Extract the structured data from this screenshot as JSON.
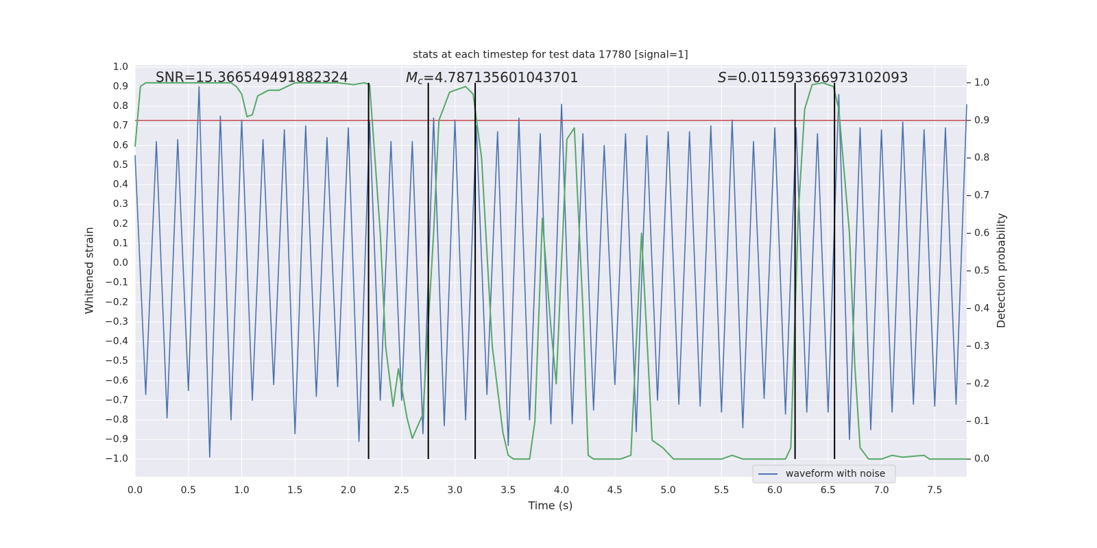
{
  "chart_data": {
    "type": "line",
    "title": "stats at each timestep for test data 17780 [signal=1]",
    "xlabel": "Time (s)",
    "ylabel": "Whitened strain",
    "y2label": "Detection probability",
    "annotations": [
      {
        "text": "SNR=15.366549491882324"
      },
      {
        "symbol": "M",
        "subscript": "c",
        "text": "=4.787135601043701"
      },
      {
        "symbol": "S",
        "text": "=0.011593366973102093"
      }
    ],
    "xlim": [
      0,
      7.8
    ],
    "ylim": [
      -1.09,
      1.01
    ],
    "y2lim": [
      -0.047,
      1.047
    ],
    "xticks": [
      {
        "value": 0,
        "label": "0.0"
      },
      {
        "value": 0.5,
        "label": "0.5"
      },
      {
        "value": 1,
        "label": "1.0"
      },
      {
        "value": 1.5,
        "label": "1.5"
      },
      {
        "value": 2,
        "label": "2.0"
      },
      {
        "value": 2.5,
        "label": "2.5"
      },
      {
        "value": 3,
        "label": "3.0"
      },
      {
        "value": 3.5,
        "label": "3.5"
      },
      {
        "value": 4,
        "label": "4.0"
      },
      {
        "value": 4.5,
        "label": "4.5"
      },
      {
        "value": 5,
        "label": "5.0"
      },
      {
        "value": 5.5,
        "label": "5.5"
      },
      {
        "value": 6,
        "label": "6.0"
      },
      {
        "value": 6.5,
        "label": "6.5"
      },
      {
        "value": 7,
        "label": "7.0"
      },
      {
        "value": 7.5,
        "label": "7.5"
      }
    ],
    "yticks": [
      {
        "value": 1,
        "label": "1.0"
      },
      {
        "value": 0.9,
        "label": "0.9"
      },
      {
        "value": 0.8,
        "label": "0.8"
      },
      {
        "value": 0.7,
        "label": "0.7"
      },
      {
        "value": 0.6,
        "label": "0.6"
      },
      {
        "value": 0.5,
        "label": "0.5"
      },
      {
        "value": 0.4,
        "label": "0.4"
      },
      {
        "value": 0.3,
        "label": "0.3"
      },
      {
        "value": 0.2,
        "label": "0.2"
      },
      {
        "value": 0.1,
        "label": "0.1"
      },
      {
        "value": 0,
        "label": "0.0"
      },
      {
        "value": -0.1,
        "label": "−0.1"
      },
      {
        "value": -0.2,
        "label": "−0.2"
      },
      {
        "value": -0.3,
        "label": "−0.3"
      },
      {
        "value": -0.4,
        "label": "−0.4"
      },
      {
        "value": -0.5,
        "label": "−0.5"
      },
      {
        "value": -0.6,
        "label": "−0.6"
      },
      {
        "value": -0.7,
        "label": "−0.7"
      },
      {
        "value": -0.8,
        "label": "−0.8"
      },
      {
        "value": -0.9,
        "label": "−0.9"
      },
      {
        "value": -1,
        "label": "−1.0"
      }
    ],
    "y2ticks": [
      {
        "value": 0,
        "label": "0.0"
      },
      {
        "value": 0.1,
        "label": "0.1"
      },
      {
        "value": 0.2,
        "label": "0.2"
      },
      {
        "value": 0.3,
        "label": "0.3"
      },
      {
        "value": 0.4,
        "label": "0.4"
      },
      {
        "value": 0.5,
        "label": "0.5"
      },
      {
        "value": 0.6,
        "label": "0.6"
      },
      {
        "value": 0.7,
        "label": "0.7"
      },
      {
        "value": 0.8,
        "label": "0.8"
      },
      {
        "value": 0.9,
        "label": "0.9"
      },
      {
        "value": 1,
        "label": "1.0"
      }
    ],
    "grid": true,
    "legend": "lower right",
    "series": [
      {
        "name": "waveform with noise",
        "color": "#4c72b0",
        "axis": "y",
        "x": [
          0,
          0.1,
          0.2,
          0.3,
          0.4,
          0.5,
          0.6,
          0.7,
          0.8,
          0.9,
          1,
          1.1,
          1.2,
          1.3,
          1.4,
          1.5,
          1.6,
          1.7,
          1.8,
          1.9,
          2,
          2.1,
          2.2,
          2.3,
          2.4,
          2.5,
          2.6,
          2.7,
          2.8,
          2.9,
          3,
          3.1,
          3.2,
          3.3,
          3.4,
          3.5,
          3.6,
          3.7,
          3.8,
          3.9,
          4,
          4.1,
          4.2,
          4.3,
          4.4,
          4.5,
          4.6,
          4.7,
          4.8,
          4.9,
          5,
          5.1,
          5.2,
          5.3,
          5.4,
          5.5,
          5.6,
          5.7,
          5.8,
          5.9,
          6,
          6.1,
          6.2,
          6.3,
          6.4,
          6.5,
          6.6,
          6.7,
          6.8,
          6.9,
          7,
          7.1,
          7.2,
          7.3,
          7.4,
          7.5,
          7.6,
          7.7,
          7.8
        ],
        "values": [
          0.55,
          -0.67,
          0.62,
          -0.79,
          0.63,
          -0.65,
          0.9,
          -0.99,
          0.75,
          -0.8,
          0.73,
          -0.7,
          0.63,
          -0.62,
          0.68,
          -0.87,
          0.7,
          -0.68,
          0.64,
          -0.63,
          0.69,
          -0.91,
          0.72,
          -0.7,
          0.62,
          -0.7,
          0.62,
          -0.87,
          0.74,
          -0.83,
          0.73,
          -0.8,
          0.7,
          -0.67,
          0.67,
          -0.93,
          0.74,
          -0.8,
          0.66,
          -0.82,
          0.81,
          -0.82,
          0.66,
          -0.75,
          0.6,
          -0.62,
          0.66,
          -0.86,
          0.65,
          -0.7,
          0.67,
          -0.72,
          0.67,
          -0.73,
          0.7,
          -0.76,
          0.73,
          -0.84,
          0.62,
          -0.69,
          0.69,
          -0.77,
          0.69,
          -0.76,
          0.66,
          -0.76,
          0.86,
          -0.9,
          0.69,
          -0.85,
          0.68,
          -0.76,
          0.72,
          -0.72,
          0.68,
          -0.73,
          0.69,
          -0.72,
          0.81
        ]
      },
      {
        "color": "#55a868",
        "axis": "y2",
        "x": [
          0,
          0.05,
          0.1,
          0.9,
          0.95,
          1,
          1.05,
          1.1,
          1.15,
          1.25,
          1.35,
          1.5,
          1.9,
          2.05,
          2.15,
          2.2,
          2.3,
          2.35,
          2.42,
          2.47,
          2.55,
          2.6,
          2.7,
          2.8,
          2.85,
          2.95,
          3.1,
          3.17,
          3.25,
          3.35,
          3.45,
          3.5,
          3.55,
          3.7,
          3.75,
          3.82,
          3.9,
          3.95,
          4.05,
          4.12,
          4.2,
          4.25,
          4.3,
          4.55,
          4.65,
          4.75,
          4.85,
          4.95,
          5.05,
          5.1,
          5.5,
          5.6,
          5.7,
          6.1,
          6.15,
          6.22,
          6.28,
          6.35,
          6.45,
          6.55,
          6.6,
          6.7,
          6.75,
          6.8,
          6.88,
          7,
          7.1,
          7.2,
          7.4,
          7.45,
          7.8
        ],
        "values": [
          0.83,
          0.99,
          1,
          1,
          0.99,
          0.97,
          0.91,
          0.915,
          0.965,
          0.98,
          0.98,
          1,
          1,
          0.995,
          1,
          0.995,
          0.6,
          0.3,
          0.14,
          0.24,
          0.11,
          0.055,
          0.12,
          0.6,
          0.9,
          0.975,
          0.99,
          0.97,
          0.8,
          0.3,
          0.07,
          0.01,
          0,
          0,
          0.1,
          0.64,
          0.35,
          0.2,
          0.85,
          0.88,
          0.4,
          0.01,
          0,
          0,
          0.01,
          0.6,
          0.05,
          0.03,
          0,
          0,
          0,
          0.01,
          0,
          0,
          0.03,
          0.65,
          0.93,
          0.995,
          1,
          0.99,
          0.93,
          0.6,
          0.25,
          0.03,
          0,
          0,
          0.01,
          0.005,
          0.01,
          0,
          0
        ]
      }
    ],
    "threshold": {
      "value": 0.9,
      "axis": "y2",
      "color": "#c44e52"
    },
    "vlines": {
      "x": [
        2.19,
        2.75,
        3.19,
        6.19,
        6.56
      ],
      "from": 0,
      "to": 1,
      "axis": "y2",
      "color": "#000000"
    }
  }
}
